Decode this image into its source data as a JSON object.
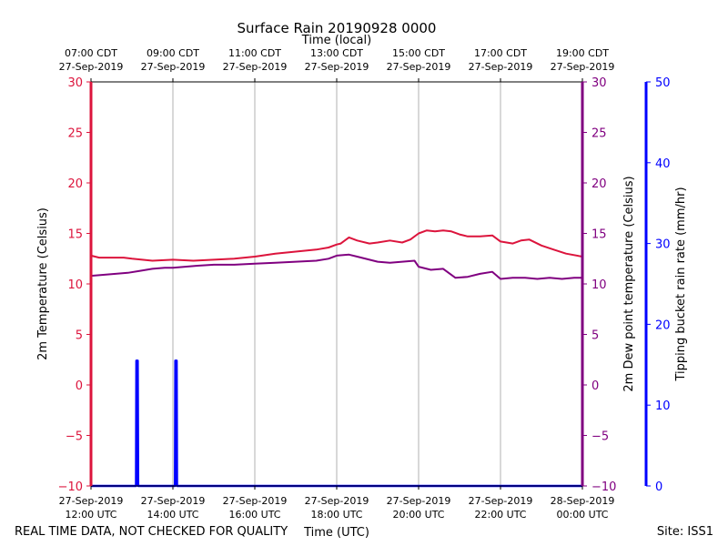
{
  "colors": {
    "temperature": "#dc143c",
    "dewpoint": "#800080",
    "rain": "#0000ff",
    "grid": "#b0b0b0",
    "axis": "#000000"
  },
  "chart_data": {
    "type": "line",
    "title": "Surface Rain 20190928 0000",
    "top_axis_label": "Time (local)",
    "xlabel": "Time (UTC)",
    "ylabel_left": "2m Temperature (Celsius)",
    "ylabel_right_inner": "2m Dew point temperature (Celsius)",
    "ylabel_right_outer": "Tipping bucket rain rate (mm/hr)",
    "footer_left": "REAL TIME DATA, NOT CHECKED FOR QUALITY",
    "footer_right": "Site: ISS1",
    "x_range_hours_utc": [
      12,
      24
    ],
    "ylim_temperature": [
      -10,
      30
    ],
    "ylim_dewpoint": [
      -10,
      30
    ],
    "ylim_rain": [
      0,
      50
    ],
    "yticks_temperature": [
      "30",
      "25",
      "20",
      "15",
      "10",
      "5",
      "0",
      "−5",
      "−10"
    ],
    "yticks_dewpoint": [
      "30",
      "25",
      "20",
      "15",
      "10",
      "5",
      "0",
      "−5",
      "−10"
    ],
    "yticks_rain": [
      "50",
      "40",
      "30",
      "20",
      "10",
      "0"
    ],
    "bottom_ticks": [
      {
        "date": "27-Sep-2019",
        "time": "12:00 UTC"
      },
      {
        "date": "27-Sep-2019",
        "time": "14:00 UTC"
      },
      {
        "date": "27-Sep-2019",
        "time": "16:00 UTC"
      },
      {
        "date": "27-Sep-2019",
        "time": "18:00 UTC"
      },
      {
        "date": "27-Sep-2019",
        "time": "20:00 UTC"
      },
      {
        "date": "27-Sep-2019",
        "time": "22:00 UTC"
      },
      {
        "date": "28-Sep-2019",
        "time": "00:00 UTC"
      }
    ],
    "top_ticks": [
      {
        "time": "07:00 CDT",
        "date": "27-Sep-2019"
      },
      {
        "time": "09:00 CDT",
        "date": "27-Sep-2019"
      },
      {
        "time": "11:00 CDT",
        "date": "27-Sep-2019"
      },
      {
        "time": "13:00 CDT",
        "date": "27-Sep-2019"
      },
      {
        "time": "15:00 CDT",
        "date": "27-Sep-2019"
      },
      {
        "time": "17:00 CDT",
        "date": "27-Sep-2019"
      },
      {
        "time": "19:00 CDT",
        "date": "27-Sep-2019"
      }
    ],
    "series": [
      {
        "name": "2m Temperature",
        "axis": "temperature",
        "x": [
          12.0,
          12.2,
          12.5,
          12.8,
          13.0,
          13.5,
          14.0,
          14.5,
          15.0,
          15.5,
          16.0,
          16.5,
          17.0,
          17.5,
          17.8,
          18.0,
          18.1,
          18.3,
          18.5,
          18.8,
          19.0,
          19.3,
          19.6,
          19.8,
          20.0,
          20.2,
          20.4,
          20.6,
          20.8,
          21.0,
          21.2,
          21.5,
          21.8,
          22.0,
          22.3,
          22.5,
          22.7,
          23.0,
          23.3,
          23.6,
          24.0
        ],
        "values": [
          12.8,
          12.6,
          12.6,
          12.6,
          12.5,
          12.3,
          12.4,
          12.3,
          12.4,
          12.5,
          12.7,
          13.0,
          13.2,
          13.4,
          13.6,
          13.9,
          14.0,
          14.6,
          14.3,
          14.0,
          14.1,
          14.3,
          14.1,
          14.4,
          15.0,
          15.3,
          15.2,
          15.3,
          15.2,
          14.9,
          14.7,
          14.7,
          14.8,
          14.2,
          14.0,
          14.3,
          14.4,
          13.8,
          13.4,
          13.0,
          12.7
        ]
      },
      {
        "name": "2m Dew point temperature",
        "axis": "dewpoint",
        "x": [
          12.0,
          12.3,
          12.6,
          12.9,
          13.2,
          13.5,
          13.8,
          14.0,
          14.3,
          14.6,
          15.0,
          15.5,
          16.0,
          16.5,
          17.0,
          17.5,
          17.8,
          18.0,
          18.3,
          18.5,
          18.8,
          19.0,
          19.3,
          19.6,
          19.9,
          20.0,
          20.3,
          20.6,
          20.9,
          21.2,
          21.5,
          21.8,
          22.0,
          22.3,
          22.6,
          22.9,
          23.2,
          23.5,
          23.8,
          24.0
        ],
        "values": [
          10.8,
          10.9,
          11.0,
          11.1,
          11.3,
          11.5,
          11.6,
          11.6,
          11.7,
          11.8,
          11.9,
          11.9,
          12.0,
          12.1,
          12.2,
          12.3,
          12.5,
          12.8,
          12.9,
          12.7,
          12.4,
          12.2,
          12.1,
          12.2,
          12.3,
          11.7,
          11.4,
          11.5,
          10.6,
          10.7,
          11.0,
          11.2,
          10.5,
          10.6,
          10.6,
          10.5,
          10.6,
          10.5,
          10.6,
          10.6
        ]
      },
      {
        "name": "Tipping bucket rain rate",
        "axis": "rain",
        "x": [
          12.0,
          13.1,
          13.11,
          13.14,
          13.15,
          14.05,
          14.06,
          14.09,
          14.1,
          24.0
        ],
        "values": [
          0,
          0,
          15.5,
          15.5,
          0,
          0,
          15.5,
          15.5,
          0,
          0
        ]
      }
    ]
  }
}
